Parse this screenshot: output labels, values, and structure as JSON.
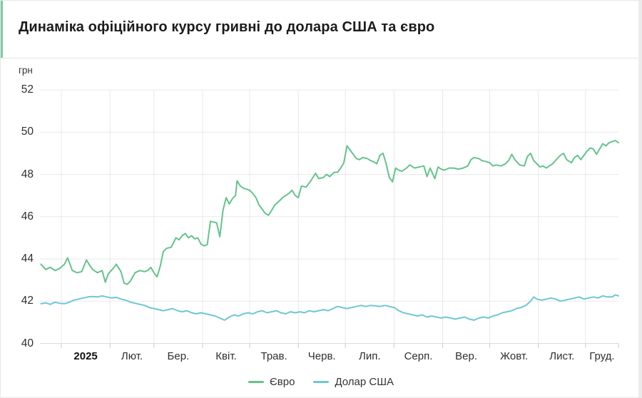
{
  "header": {
    "title": "Динаміка офіційного курсу гривні до долара США та євро"
  },
  "colors": {
    "euro_line": "#64c38c",
    "usd_line": "#6ec7d4",
    "gridline": "#e8e8e8",
    "axis_line": "#dcdcdc",
    "tick": "#c9c9c9",
    "accent_bar": "#7fc9a6",
    "text": "#2f2f2f"
  },
  "chart_data": {
    "type": "line",
    "title": "Динаміка офіційного курсу гривні до долара США та євро",
    "ylabel": "грн",
    "xlabel": "",
    "y_ticks": [
      52,
      50,
      48,
      46,
      44,
      42,
      40
    ],
    "ylim": [
      40,
      52
    ],
    "grid": true,
    "legend_position": "bottom",
    "x_tick_labels": [
      "2025",
      "Лют.",
      "Бер.",
      "Квіт.",
      "Трав.",
      "Черв.",
      "Лип.",
      "Серп.",
      "Вер.",
      "Жовт.",
      "Лист.",
      "Груд."
    ],
    "x_domain_days": [
      -13,
      355
    ],
    "month_boundaries_days": [
      0,
      31,
      59,
      90,
      120,
      151,
      181,
      212,
      243,
      273,
      304,
      334,
      355
    ],
    "series": [
      {
        "name": "Євро",
        "color": "#64c38c",
        "points": [
          [
            -13,
            43.75
          ],
          [
            -10,
            43.5
          ],
          [
            -7,
            43.6
          ],
          [
            -4,
            43.45
          ],
          [
            -1,
            43.55
          ],
          [
            2,
            43.75
          ],
          [
            4,
            44.05
          ],
          [
            7,
            43.45
          ],
          [
            10,
            43.35
          ],
          [
            13,
            43.4
          ],
          [
            16,
            43.95
          ],
          [
            18,
            43.7
          ],
          [
            20,
            43.5
          ],
          [
            23,
            43.35
          ],
          [
            26,
            43.45
          ],
          [
            28,
            42.9
          ],
          [
            30,
            43.3
          ],
          [
            33,
            43.55
          ],
          [
            35,
            43.75
          ],
          [
            38,
            43.4
          ],
          [
            40,
            42.85
          ],
          [
            42,
            42.8
          ],
          [
            44,
            42.95
          ],
          [
            47,
            43.35
          ],
          [
            50,
            43.45
          ],
          [
            53,
            43.4
          ],
          [
            55,
            43.45
          ],
          [
            57,
            43.6
          ],
          [
            59,
            43.35
          ],
          [
            61,
            43.15
          ],
          [
            63,
            43.65
          ],
          [
            65,
            44.35
          ],
          [
            67,
            44.5
          ],
          [
            70,
            44.55
          ],
          [
            73,
            45.0
          ],
          [
            75,
            44.9
          ],
          [
            77,
            45.1
          ],
          [
            79,
            45.2
          ],
          [
            81,
            45.0
          ],
          [
            83,
            45.1
          ],
          [
            85,
            44.95
          ],
          [
            87,
            45.0
          ],
          [
            89,
            44.7
          ],
          [
            91,
            44.62
          ],
          [
            93,
            44.68
          ],
          [
            95,
            45.78
          ],
          [
            97,
            45.75
          ],
          [
            99,
            45.7
          ],
          [
            101,
            45.05
          ],
          [
            103,
            46.3
          ],
          [
            105,
            46.9
          ],
          [
            107,
            46.6
          ],
          [
            109,
            46.85
          ],
          [
            111,
            47.0
          ],
          [
            112,
            47.7
          ],
          [
            114,
            47.45
          ],
          [
            116,
            47.35
          ],
          [
            118,
            47.3
          ],
          [
            120,
            47.25
          ],
          [
            122,
            47.1
          ],
          [
            124,
            46.9
          ],
          [
            126,
            46.55
          ],
          [
            128,
            46.35
          ],
          [
            130,
            46.15
          ],
          [
            132,
            46.07
          ],
          [
            134,
            46.3
          ],
          [
            136,
            46.55
          ],
          [
            139,
            46.75
          ],
          [
            141,
            46.9
          ],
          [
            143,
            47.0
          ],
          [
            145,
            47.1
          ],
          [
            147,
            47.25
          ],
          [
            149,
            47.0
          ],
          [
            151,
            46.9
          ],
          [
            153,
            47.45
          ],
          [
            156,
            47.4
          ],
          [
            159,
            47.7
          ],
          [
            162,
            48.05
          ],
          [
            164,
            47.8
          ],
          [
            167,
            47.85
          ],
          [
            169,
            48.0
          ],
          [
            171,
            47.9
          ],
          [
            174,
            48.1
          ],
          [
            176,
            48.1
          ],
          [
            178,
            48.3
          ],
          [
            180,
            48.55
          ],
          [
            182,
            49.35
          ],
          [
            184,
            49.15
          ],
          [
            186,
            48.95
          ],
          [
            188,
            48.75
          ],
          [
            190,
            48.7
          ],
          [
            192,
            48.8
          ],
          [
            195,
            48.75
          ],
          [
            197,
            48.65
          ],
          [
            199,
            48.6
          ],
          [
            201,
            48.5
          ],
          [
            203,
            48.9
          ],
          [
            205,
            49.0
          ],
          [
            207,
            48.5
          ],
          [
            209,
            47.85
          ],
          [
            211,
            47.65
          ],
          [
            213,
            48.3
          ],
          [
            215,
            48.2
          ],
          [
            217,
            48.15
          ],
          [
            220,
            48.3
          ],
          [
            222,
            48.45
          ],
          [
            225,
            48.3
          ],
          [
            228,
            48.35
          ],
          [
            231,
            48.4
          ],
          [
            233,
            47.9
          ],
          [
            235,
            48.3
          ],
          [
            238,
            47.8
          ],
          [
            240,
            48.35
          ],
          [
            242,
            48.25
          ],
          [
            244,
            48.2
          ],
          [
            247,
            48.3
          ],
          [
            250,
            48.3
          ],
          [
            253,
            48.25
          ],
          [
            256,
            48.3
          ],
          [
            259,
            48.4
          ],
          [
            261,
            48.7
          ],
          [
            263,
            48.8
          ],
          [
            266,
            48.75
          ],
          [
            268,
            48.65
          ],
          [
            271,
            48.6
          ],
          [
            273,
            48.55
          ],
          [
            275,
            48.4
          ],
          [
            277,
            48.45
          ],
          [
            280,
            48.4
          ],
          [
            283,
            48.5
          ],
          [
            285,
            48.65
          ],
          [
            287,
            48.95
          ],
          [
            289,
            48.7
          ],
          [
            292,
            48.45
          ],
          [
            295,
            48.4
          ],
          [
            297,
            48.85
          ],
          [
            299,
            49.0
          ],
          [
            301,
            48.65
          ],
          [
            303,
            48.5
          ],
          [
            305,
            48.35
          ],
          [
            307,
            48.4
          ],
          [
            309,
            48.3
          ],
          [
            311,
            48.4
          ],
          [
            313,
            48.5
          ],
          [
            316,
            48.75
          ],
          [
            318,
            48.9
          ],
          [
            320,
            49.0
          ],
          [
            322,
            48.7
          ],
          [
            325,
            48.55
          ],
          [
            327,
            48.8
          ],
          [
            329,
            48.9
          ],
          [
            331,
            48.7
          ],
          [
            333,
            48.9
          ],
          [
            335,
            49.1
          ],
          [
            337,
            49.25
          ],
          [
            339,
            49.2
          ],
          [
            341,
            48.95
          ],
          [
            343,
            49.2
          ],
          [
            345,
            49.45
          ],
          [
            347,
            49.35
          ],
          [
            349,
            49.5
          ],
          [
            351,
            49.55
          ],
          [
            353,
            49.6
          ],
          [
            355,
            49.5
          ]
        ]
      },
      {
        "name": "Долар США",
        "color": "#6ec7d4",
        "points": [
          [
            -13,
            41.88
          ],
          [
            -10,
            41.92
          ],
          [
            -7,
            41.85
          ],
          [
            -4,
            41.95
          ],
          [
            -1,
            41.9
          ],
          [
            2,
            41.88
          ],
          [
            5,
            41.95
          ],
          [
            8,
            42.05
          ],
          [
            11,
            42.1
          ],
          [
            14,
            42.15
          ],
          [
            17,
            42.2
          ],
          [
            20,
            42.22
          ],
          [
            23,
            42.2
          ],
          [
            26,
            42.25
          ],
          [
            29,
            42.2
          ],
          [
            32,
            42.15
          ],
          [
            35,
            42.18
          ],
          [
            38,
            42.1
          ],
          [
            41,
            42.05
          ],
          [
            44,
            41.95
          ],
          [
            47,
            41.9
          ],
          [
            50,
            41.85
          ],
          [
            53,
            41.8
          ],
          [
            56,
            41.7
          ],
          [
            59,
            41.65
          ],
          [
            62,
            41.6
          ],
          [
            65,
            41.55
          ],
          [
            68,
            41.6
          ],
          [
            71,
            41.65
          ],
          [
            74,
            41.55
          ],
          [
            77,
            41.5
          ],
          [
            80,
            41.55
          ],
          [
            83,
            41.45
          ],
          [
            86,
            41.4
          ],
          [
            89,
            41.45
          ],
          [
            92,
            41.4
          ],
          [
            95,
            41.35
          ],
          [
            98,
            41.3
          ],
          [
            101,
            41.2
          ],
          [
            104,
            41.1
          ],
          [
            107,
            41.25
          ],
          [
            110,
            41.35
          ],
          [
            113,
            41.3
          ],
          [
            116,
            41.4
          ],
          [
            119,
            41.45
          ],
          [
            122,
            41.4
          ],
          [
            125,
            41.5
          ],
          [
            128,
            41.55
          ],
          [
            131,
            41.45
          ],
          [
            134,
            41.5
          ],
          [
            137,
            41.55
          ],
          [
            140,
            41.45
          ],
          [
            143,
            41.4
          ],
          [
            146,
            41.5
          ],
          [
            149,
            41.45
          ],
          [
            152,
            41.5
          ],
          [
            155,
            41.45
          ],
          [
            158,
            41.55
          ],
          [
            161,
            41.5
          ],
          [
            164,
            41.55
          ],
          [
            167,
            41.6
          ],
          [
            170,
            41.55
          ],
          [
            173,
            41.65
          ],
          [
            176,
            41.75
          ],
          [
            179,
            41.7
          ],
          [
            182,
            41.65
          ],
          [
            185,
            41.7
          ],
          [
            188,
            41.75
          ],
          [
            191,
            41.8
          ],
          [
            194,
            41.75
          ],
          [
            197,
            41.8
          ],
          [
            200,
            41.78
          ],
          [
            203,
            41.75
          ],
          [
            206,
            41.8
          ],
          [
            209,
            41.75
          ],
          [
            212,
            41.7
          ],
          [
            215,
            41.55
          ],
          [
            218,
            41.45
          ],
          [
            221,
            41.4
          ],
          [
            224,
            41.35
          ],
          [
            227,
            41.3
          ],
          [
            230,
            41.35
          ],
          [
            233,
            41.25
          ],
          [
            236,
            41.3
          ],
          [
            239,
            41.25
          ],
          [
            242,
            41.2
          ],
          [
            245,
            41.25
          ],
          [
            248,
            41.2
          ],
          [
            251,
            41.15
          ],
          [
            254,
            41.2
          ],
          [
            257,
            41.25
          ],
          [
            260,
            41.15
          ],
          [
            263,
            41.1
          ],
          [
            266,
            41.2
          ],
          [
            269,
            41.25
          ],
          [
            272,
            41.2
          ],
          [
            275,
            41.3
          ],
          [
            278,
            41.35
          ],
          [
            281,
            41.45
          ],
          [
            284,
            41.5
          ],
          [
            287,
            41.55
          ],
          [
            290,
            41.65
          ],
          [
            293,
            41.7
          ],
          [
            296,
            41.8
          ],
          [
            299,
            42.0
          ],
          [
            301,
            42.2
          ],
          [
            303,
            42.1
          ],
          [
            306,
            42.05
          ],
          [
            309,
            42.1
          ],
          [
            312,
            42.15
          ],
          [
            315,
            42.1
          ],
          [
            318,
            42.0
          ],
          [
            321,
            42.05
          ],
          [
            324,
            42.1
          ],
          [
            327,
            42.15
          ],
          [
            330,
            42.2
          ],
          [
            333,
            42.1
          ],
          [
            336,
            42.15
          ],
          [
            339,
            42.2
          ],
          [
            342,
            42.15
          ],
          [
            345,
            42.25
          ],
          [
            348,
            42.2
          ],
          [
            351,
            42.2
          ],
          [
            353,
            42.3
          ],
          [
            355,
            42.25
          ]
        ]
      }
    ]
  }
}
